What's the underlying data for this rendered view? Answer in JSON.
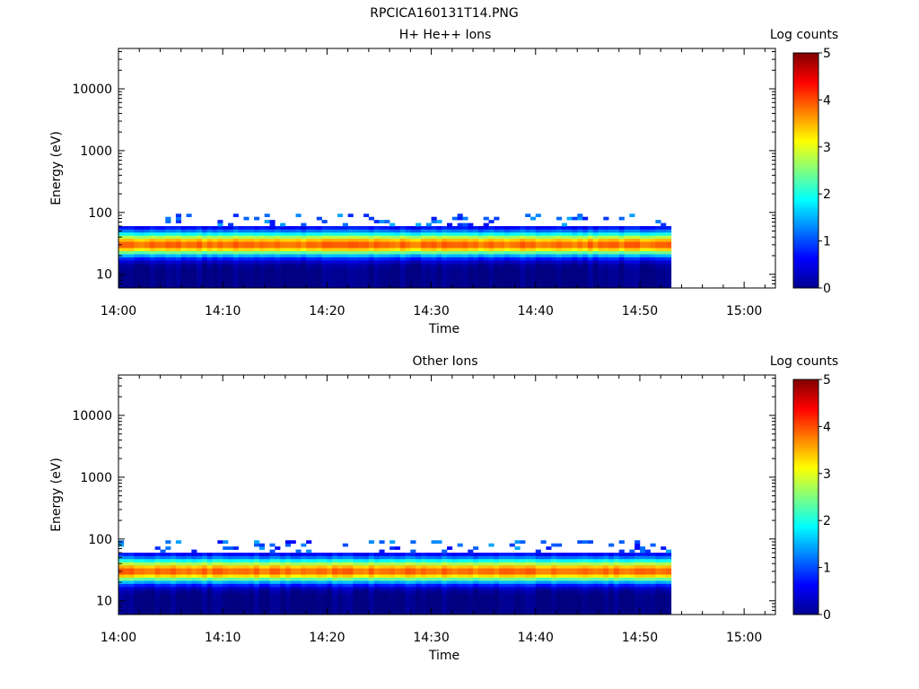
{
  "figure_title": "RPCICA160131T14.PNG",
  "chart_data": [
    {
      "type": "heatmap",
      "title": "H+ He++ Ions",
      "xlabel": "Time",
      "ylabel": "Energy (eV)",
      "y_scale": "log",
      "ylim": [
        6,
        45000
      ],
      "xlim": [
        "14:00",
        "15:03"
      ],
      "x_ticks": [
        "14:00",
        "14:10",
        "14:20",
        "14:30",
        "14:40",
        "14:50",
        "15:00"
      ],
      "y_ticks": [
        "10",
        "100",
        "1000",
        "10000"
      ],
      "y_tick_values": [
        10,
        100,
        1000,
        10000
      ],
      "data_time_range": [
        "14:00",
        "14:53"
      ],
      "colorbar": {
        "label": "Log counts",
        "range": [
          0,
          5
        ],
        "ticks": [
          "0",
          "1",
          "2",
          "3",
          "4",
          "5"
        ]
      },
      "core_band_energy_eV": [
        18,
        55
      ],
      "peak_energy_eV": 30,
      "peak_log_counts": 3.9,
      "sparse_counts_up_to_eV": 100
    },
    {
      "type": "heatmap",
      "title": "Other Ions",
      "xlabel": "Time",
      "ylabel": "Energy (eV)",
      "y_scale": "log",
      "ylim": [
        6,
        45000
      ],
      "xlim": [
        "14:00",
        "15:03"
      ],
      "x_ticks": [
        "14:00",
        "14:10",
        "14:20",
        "14:30",
        "14:40",
        "14:50",
        "15:00"
      ],
      "y_ticks": [
        "10",
        "100",
        "1000",
        "10000"
      ],
      "y_tick_values": [
        10,
        100,
        1000,
        10000
      ],
      "data_time_range": [
        "14:00",
        "14:53"
      ],
      "colorbar": {
        "label": "Log counts",
        "range": [
          0,
          5
        ],
        "ticks": [
          "0",
          "1",
          "2",
          "3",
          "4",
          "5"
        ]
      },
      "core_band_energy_eV": [
        18,
        55
      ],
      "peak_energy_eV": 30,
      "peak_log_counts": 3.9,
      "sparse_counts_up_to_eV": 100
    }
  ]
}
